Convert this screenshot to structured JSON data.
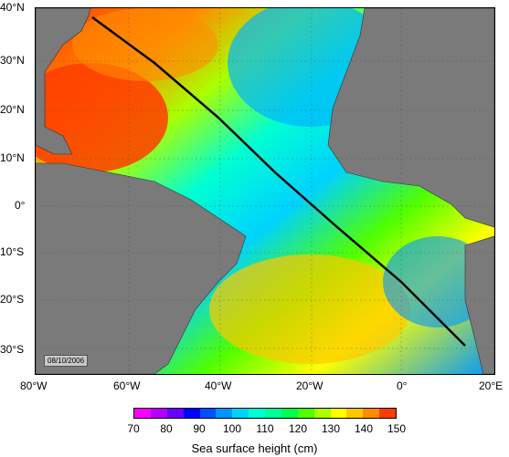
{
  "map": {
    "lat_labels": [
      "40°N",
      "30°N",
      "20°N",
      "10°N",
      "0°",
      "10°S",
      "20°S",
      "30°S"
    ],
    "lon_labels": [
      "80°W",
      "60°W",
      "40°W",
      "20°W",
      "0°",
      "20°E"
    ],
    "date": "08/10/2006",
    "colors": {
      "land": "#7a7a7a",
      "track": "#000000",
      "palette": [
        "#ff00ff",
        "#b400ff",
        "#6a00ff",
        "#0000ff",
        "#0050ff",
        "#0096ff",
        "#00d2ff",
        "#00ffd2",
        "#00ff96",
        "#00ff50",
        "#50ff00",
        "#aaff00",
        "#ffff00",
        "#ffc800",
        "#ff8c00",
        "#ff3c00"
      ]
    }
  },
  "colorbar": {
    "labels": [
      "70",
      "80",
      "90",
      "100",
      "110",
      "120",
      "130",
      "140",
      "150"
    ],
    "title": "Sea surface height (cm)"
  }
}
